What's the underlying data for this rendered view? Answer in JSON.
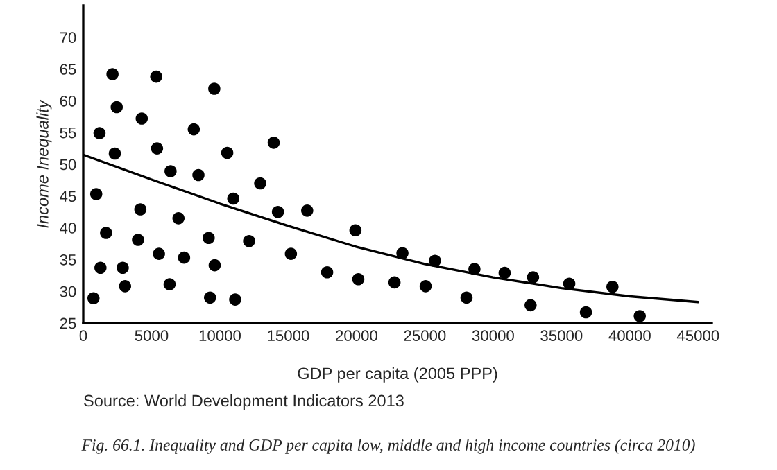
{
  "chart_data": {
    "type": "scatter",
    "title": "Fig. 66.1. Inequality and GDP per capita low, middle and high income countries (circa 2010)",
    "xlabel": "GDP per capita (2005 PPP)",
    "ylabel": "Income Inequality",
    "annotations": [
      "Source: World Development Indicators 2013"
    ],
    "xlim": [
      0,
      46000
    ],
    "ylim": [
      25,
      75
    ],
    "xticks": [
      0,
      5000,
      10000,
      15000,
      20000,
      25000,
      30000,
      35000,
      40000,
      45000
    ],
    "yticks": [
      25,
      30,
      35,
      40,
      45,
      50,
      55,
      60,
      65,
      70
    ],
    "grid": false,
    "legend": false,
    "series": [
      {
        "color": "#000000",
        "marker": "circle",
        "x": [
          750,
          2140,
          5340,
          9590,
          2450,
          4280,
          1190,
          8090,
          13940,
          5400,
          2310,
          10540,
          6390,
          8430,
          12950,
          950,
          10980,
          4180,
          14250,
          16390,
          6970,
          1670,
          9180,
          4010,
          12140,
          5540,
          15200,
          1260,
          2890,
          7380,
          9620,
          3060,
          6320,
          9280,
          11120,
          19920,
          17850,
          20130,
          23360,
          22780,
          25740,
          25060,
          28050,
          28630,
          30840,
          32920,
          32740,
          35570,
          36790,
          38730,
          40730
        ],
        "values": [
          28.9,
          64.2,
          63.8,
          61.9,
          59.0,
          57.2,
          54.9,
          55.5,
          53.4,
          52.5,
          51.7,
          51.8,
          48.9,
          48.3,
          47.0,
          45.3,
          44.6,
          42.9,
          42.5,
          42.7,
          41.5,
          39.2,
          38.4,
          38.1,
          37.9,
          35.9,
          35.9,
          33.7,
          33.7,
          35.3,
          34.1,
          30.8,
          31.1,
          29.0,
          28.7,
          39.6,
          33.0,
          31.9,
          36.0,
          31.4,
          34.8,
          30.8,
          29.0,
          33.5,
          32.9,
          32.2,
          27.8,
          31.2,
          26.7,
          30.7,
          26.1
        ]
      },
      {
        "type": "line",
        "color": "#000000",
        "line_style": "solid",
        "x": [
          0,
          5000,
          10000,
          15000,
          20000,
          25000,
          30000,
          35000,
          40000,
          45000
        ],
        "values": [
          51.5,
          47.6,
          43.8,
          40.3,
          37.0,
          34.3,
          32.2,
          30.5,
          29.2,
          28.3
        ]
      }
    ]
  }
}
